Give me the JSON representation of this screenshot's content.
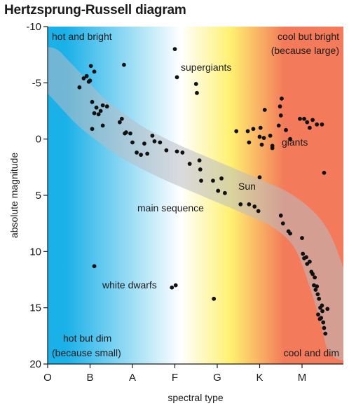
{
  "chart_data": {
    "type": "scatter",
    "title": "Hertzsprung-Russell diagram",
    "xlabel": "spectral type",
    "ylabel": "absolute magnitude",
    "x_categories": [
      "O",
      "B",
      "A",
      "F",
      "G",
      "K",
      "M"
    ],
    "xlim": [
      0,
      7
    ],
    "ylim": [
      20,
      -10
    ],
    "y_ticks": [
      -10,
      -5,
      0,
      5,
      10,
      15,
      20
    ],
    "y_tick_labels": [
      "-10",
      "-5",
      "0",
      "5",
      "10",
      "15",
      "20"
    ],
    "region_labels": {
      "top_left": "hot and bright",
      "top_right_1": "cool but bright",
      "top_right_2": "(because large)",
      "bottom_left_1": "hot but dim",
      "bottom_left_2": "(because small)",
      "bottom_right": "cool and dim"
    },
    "annotations": {
      "supergiants": "supergiants",
      "giants": "giants",
      "sun": "Sun",
      "main_sequence": "main sequence",
      "white_dwarfs": "white dwarfs"
    },
    "colors": {
      "hot": "#1ab0e8",
      "mid": "#ffffff",
      "warm": "#fff070",
      "cool": "#f37a5a",
      "band": "#b9bcc2",
      "point": "#111111"
    },
    "main_sequence_band": [
      [
        0.0,
        -6.5
      ],
      [
        0.5,
        -4.5
      ],
      [
        1.0,
        -2.5
      ],
      [
        1.5,
        -1.0
      ],
      [
        2.0,
        0.3
      ],
      [
        2.5,
        1.3
      ],
      [
        3.0,
        2.2
      ],
      [
        3.5,
        3.0
      ],
      [
        4.0,
        3.8
      ],
      [
        4.5,
        4.6
      ],
      [
        5.0,
        5.4
      ],
      [
        5.5,
        6.3
      ],
      [
        6.0,
        7.8
      ],
      [
        6.3,
        9.5
      ],
      [
        6.55,
        12.0
      ],
      [
        6.8,
        15.0
      ],
      [
        7.0,
        18.0
      ]
    ],
    "points": [
      [
        0.75,
        -4.6
      ],
      [
        0.85,
        -5.4
      ],
      [
        0.92,
        -5.6
      ],
      [
        0.97,
        -5.1
      ],
      [
        1.02,
        -6.5
      ],
      [
        1.1,
        -6.0
      ],
      [
        1.0,
        -5.2
      ],
      [
        1.05,
        -3.3
      ],
      [
        1.15,
        -2.8
      ],
      [
        1.2,
        -2.2
      ],
      [
        1.25,
        -2.5
      ],
      [
        1.3,
        -3.0
      ],
      [
        1.4,
        -2.9
      ],
      [
        1.1,
        -2.3
      ],
      [
        1.3,
        -1.2
      ],
      [
        1.05,
        -0.9
      ],
      [
        1.7,
        -1.5
      ],
      [
        1.75,
        -1.8
      ],
      [
        1.85,
        -0.6
      ],
      [
        1.95,
        -0.5
      ],
      [
        1.82,
        -0.5
      ],
      [
        2.0,
        0.3
      ],
      [
        2.1,
        1.2
      ],
      [
        2.2,
        1.4
      ],
      [
        2.28,
        0.4
      ],
      [
        2.35,
        1.3
      ],
      [
        2.47,
        -0.3
      ],
      [
        2.52,
        0.2
      ],
      [
        2.65,
        0.3
      ],
      [
        2.8,
        1.0
      ],
      [
        3.05,
        1.1
      ],
      [
        3.18,
        1.2
      ],
      [
        3.35,
        2.2
      ],
      [
        3.6,
        2.7
      ],
      [
        3.62,
        3.7
      ],
      [
        3.58,
        1.9
      ],
      [
        3.9,
        3.7
      ],
      [
        4.1,
        3.5
      ],
      [
        4.02,
        4.6
      ],
      [
        4.18,
        4.8
      ],
      [
        4.55,
        5.8
      ],
      [
        4.75,
        5.8
      ],
      [
        4.88,
        6.0
      ],
      [
        4.97,
        6.4
      ],
      [
        5.5,
        6.8
      ],
      [
        5.55,
        7.5
      ],
      [
        5.68,
        8.2
      ],
      [
        5.72,
        8.4
      ],
      [
        6.0,
        8.8
      ],
      [
        6.02,
        10.2
      ],
      [
        6.05,
        10.6
      ],
      [
        6.1,
        10.5
      ],
      [
        6.12,
        11.1
      ],
      [
        6.18,
        10.9
      ],
      [
        6.22,
        11.8
      ],
      [
        6.25,
        12.0
      ],
      [
        6.3,
        12.3
      ],
      [
        6.28,
        13.0
      ],
      [
        6.32,
        13.4
      ],
      [
        6.35,
        13.1
      ],
      [
        6.4,
        14.2
      ],
      [
        6.43,
        15.0
      ],
      [
        6.38,
        15.6
      ],
      [
        6.48,
        15.3
      ],
      [
        6.45,
        15.9
      ],
      [
        6.5,
        16.3
      ],
      [
        6.52,
        16.8
      ],
      [
        6.55,
        17.3
      ],
      [
        6.42,
        16.0
      ],
      [
        6.6,
        15.1
      ],
      [
        6.47,
        14.8
      ],
      [
        6.37,
        13.8
      ],
      [
        3.0,
        -8.0
      ],
      [
        3.05,
        -5.5
      ],
      [
        3.5,
        -4.9
      ],
      [
        3.52,
        -4.1
      ],
      [
        1.8,
        -6.6
      ],
      [
        4.45,
        -0.7
      ],
      [
        4.72,
        -0.7
      ],
      [
        4.75,
        0.3
      ],
      [
        4.85,
        -0.9
      ],
      [
        5.0,
        -0.2
      ],
      [
        5.02,
        -1.0
      ],
      [
        5.05,
        0.5
      ],
      [
        5.1,
        -0.1
      ],
      [
        5.12,
        -2.6
      ],
      [
        5.25,
        -0.3
      ],
      [
        5.3,
        0.6
      ],
      [
        5.3,
        0.8
      ],
      [
        5.45,
        -1.2
      ],
      [
        5.5,
        -2.1
      ],
      [
        5.52,
        -3.6
      ],
      [
        5.48,
        -2.9
      ],
      [
        5.62,
        -0.8
      ],
      [
        5.72,
        0.0
      ],
      [
        5.95,
        -1.8
      ],
      [
        6.05,
        -1.8
      ],
      [
        6.12,
        -1.5
      ],
      [
        6.18,
        -1.0
      ],
      [
        6.25,
        -1.7
      ],
      [
        6.35,
        -1.3
      ],
      [
        6.47,
        -1.3
      ],
      [
        6.52,
        3.0
      ],
      [
        5.0,
        3.4
      ],
      [
        2.93,
        13.2
      ],
      [
        3.02,
        13.0
      ],
      [
        3.92,
        14.2
      ],
      [
        1.1,
        11.3
      ]
    ]
  }
}
